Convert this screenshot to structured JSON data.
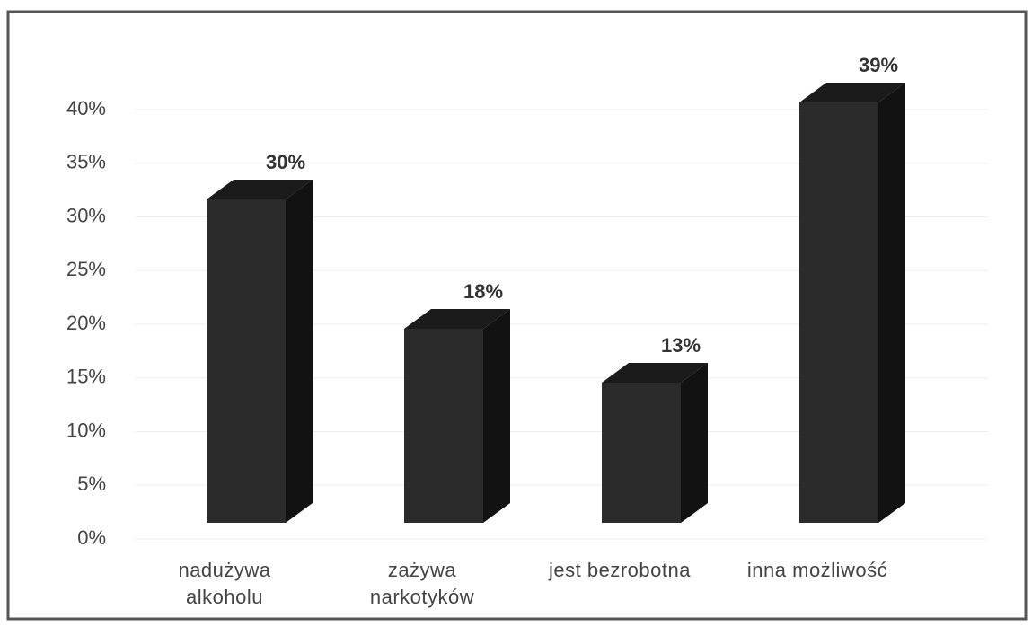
{
  "chart_data": {
    "type": "bar3d",
    "categories": [
      "nadużywa\nalkoholu",
      "zażywa\nnarkotyków",
      "jest bezrobotna",
      "inna możliwość"
    ],
    "values": [
      30,
      18,
      13,
      39
    ],
    "value_labels": [
      "30%",
      "18%",
      "13%",
      "39%"
    ],
    "color": "#2b2b2b",
    "ylim": [
      0,
      40
    ],
    "yticks": [
      {
        "value": 0,
        "label": "0%"
      },
      {
        "value": 5,
        "label": "5%"
      },
      {
        "value": 10,
        "label": "10%"
      },
      {
        "value": 15,
        "label": "15%"
      },
      {
        "value": 20,
        "label": "20%"
      },
      {
        "value": 25,
        "label": "25%"
      },
      {
        "value": 30,
        "label": "30%"
      },
      {
        "value": 35,
        "label": "35%"
      },
      {
        "value": 40,
        "label": "40%"
      }
    ],
    "grid": true
  }
}
